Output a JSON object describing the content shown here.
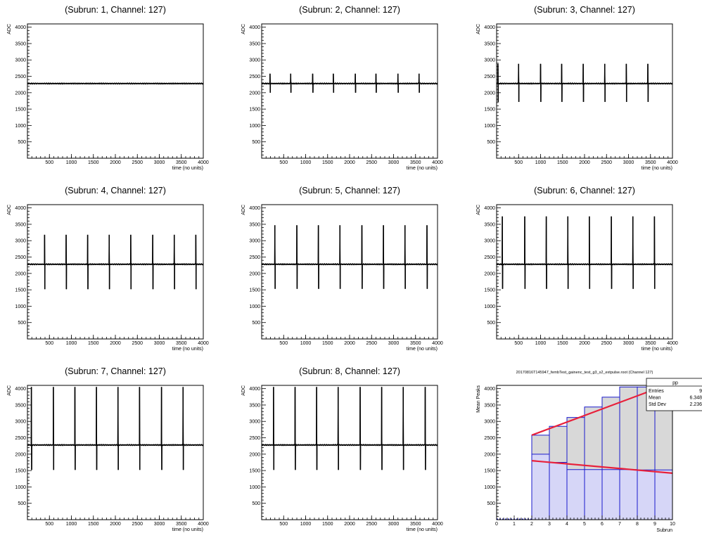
{
  "page_title": "",
  "common": {
    "xlabel": "time (no units)",
    "ylabel": "ADC",
    "xticks": [
      500,
      1000,
      1500,
      2000,
      2500,
      3000,
      3500,
      4000
    ],
    "yticks": [
      500,
      1000,
      1500,
      2000,
      2500,
      3000,
      3500,
      4000
    ]
  },
  "chart_data": [
    {
      "type": "line",
      "title": "(Subrun: 1, Channel: 127)",
      "xlabel": "time (no units)",
      "ylabel": "ADC",
      "xlim": [
        0,
        4000
      ],
      "ylim": [
        0,
        4100
      ],
      "baseline": 2280,
      "pulse_positions": [],
      "positive_peak": 2280,
      "negative_peak": 2280
    },
    {
      "type": "line",
      "title": "(Subrun: 2, Channel: 127)",
      "xlabel": "time (no units)",
      "ylabel": "ADC",
      "xlim": [
        0,
        4000
      ],
      "ylim": [
        0,
        4100
      ],
      "baseline": 2280,
      "pulse_positions": [
        190,
        660,
        1160,
        1630,
        2130,
        2600,
        3100,
        3580
      ],
      "positive_peak": 2580,
      "negative_peak": 2000
    },
    {
      "type": "line",
      "title": "(Subrun: 3, Channel: 127)",
      "xlabel": "time (no units)",
      "ylabel": "ADC",
      "xlim": [
        0,
        4000
      ],
      "ylim": [
        0,
        4100
      ],
      "baseline": 2280,
      "pulse_positions": [
        30,
        500,
        1000,
        1480,
        1970,
        2460,
        2950,
        3440
      ],
      "positive_peak": 2880,
      "negative_peak": 1720
    },
    {
      "type": "line",
      "title": "(Subrun: 4, Channel: 127)",
      "xlabel": "time (no units)",
      "ylabel": "ADC",
      "xlim": [
        0,
        4000
      ],
      "ylim": [
        0,
        4100
      ],
      "baseline": 2280,
      "pulse_positions": [
        390,
        880,
        1370,
        1860,
        2350,
        2850,
        3340,
        3830
      ],
      "positive_peak": 3180,
      "negative_peak": 1520
    },
    {
      "type": "line",
      "title": "(Subrun: 5, Channel: 127)",
      "xlabel": "time (no units)",
      "ylabel": "ADC",
      "xlim": [
        0,
        4000
      ],
      "ylim": [
        0,
        4100
      ],
      "baseline": 2280,
      "pulse_positions": [
        300,
        800,
        1290,
        1780,
        2280,
        2770,
        3260,
        3760
      ],
      "positive_peak": 3470,
      "negative_peak": 1530
    },
    {
      "type": "line",
      "title": "(Subrun: 6, Channel: 127)",
      "xlabel": "time (no units)",
      "ylabel": "ADC",
      "xlim": [
        0,
        4000
      ],
      "ylim": [
        0,
        4100
      ],
      "baseline": 2280,
      "pulse_positions": [
        130,
        640,
        1130,
        1620,
        2110,
        2610,
        3100,
        3590
      ],
      "positive_peak": 3740,
      "negative_peak": 1530
    },
    {
      "type": "line",
      "title": "(Subrun: 7, Channel: 127)",
      "xlabel": "time (no units)",
      "ylabel": "ADC",
      "xlim": [
        0,
        4000
      ],
      "ylim": [
        0,
        4100
      ],
      "baseline": 2280,
      "pulse_positions": [
        90,
        590,
        1080,
        1570,
        2060,
        2550,
        3050,
        3540
      ],
      "positive_peak": 4050,
      "negative_peak": 1520
    },
    {
      "type": "line",
      "title": "(Subrun: 8, Channel: 127)",
      "xlabel": "time (no units)",
      "ylabel": "ADC",
      "xlim": [
        0,
        4000
      ],
      "ylim": [
        0,
        4100
      ],
      "baseline": 2280,
      "pulse_positions": [
        270,
        760,
        1250,
        1740,
        2240,
        2730,
        3220,
        3720
      ],
      "positive_peak": 4050,
      "negative_peak": 1520
    },
    {
      "type": "bar",
      "title": "20170816T145947_fembTest_gainenc_test_g3_s2_extpulse.root (Channel 127)",
      "xlabel": "Subrun",
      "ylabel": "Mean Peaks",
      "xlim": [
        0,
        10
      ],
      "ylim": [
        0,
        4100
      ],
      "xticks": [
        0,
        1,
        2,
        3,
        4,
        5,
        6,
        7,
        8,
        9,
        10
      ],
      "yticks": [
        500,
        1000,
        1500,
        2000,
        2500,
        3000,
        3500,
        4000
      ],
      "bins": [
        2,
        3,
        4,
        5,
        6,
        7,
        8,
        9
      ],
      "upper_hist": [
        2580,
        2850,
        3120,
        3440,
        3740,
        4050,
        4050,
        4050
      ],
      "lower_hist": [
        2000,
        1750,
        1530,
        1530,
        1530,
        1530,
        1520,
        1520
      ],
      "upper_fit": [
        [
          2,
          2580
        ],
        [
          10,
          4180
        ]
      ],
      "lower_fit": [
        [
          2,
          1800
        ],
        [
          10,
          1420
        ]
      ],
      "stats": {
        "name": "pp",
        "rows": [
          {
            "label": "Entries",
            "value": "9"
          },
          {
            "label": "Mean",
            "value": "6.348"
          },
          {
            "label": "Std Dev",
            "value": "2.236"
          }
        ]
      },
      "colors": {
        "upper_fill": "#d8d8d8",
        "lower_fill": "#d6d6f7",
        "hist_line": "#1a1acc",
        "fit_line": "#e8203a"
      }
    }
  ]
}
